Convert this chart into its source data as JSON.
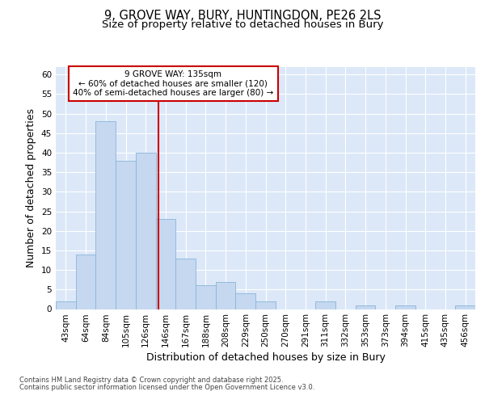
{
  "title1": "9, GROVE WAY, BURY, HUNTINGDON, PE26 2LS",
  "title2": "Size of property relative to detached houses in Bury",
  "xlabel": "Distribution of detached houses by size in Bury",
  "ylabel": "Number of detached properties",
  "categories": [
    "43sqm",
    "64sqm",
    "84sqm",
    "105sqm",
    "126sqm",
    "146sqm",
    "167sqm",
    "188sqm",
    "208sqm",
    "229sqm",
    "250sqm",
    "270sqm",
    "291sqm",
    "311sqm",
    "332sqm",
    "353sqm",
    "373sqm",
    "394sqm",
    "415sqm",
    "435sqm",
    "456sqm"
  ],
  "values": [
    2,
    14,
    48,
    38,
    40,
    23,
    13,
    6,
    7,
    4,
    2,
    0,
    0,
    2,
    0,
    1,
    0,
    1,
    0,
    0,
    1
  ],
  "bar_color": "#c5d8f0",
  "bar_edge_color": "#8ab4d8",
  "red_line_x": 4.62,
  "annotation_line1": "9 GROVE WAY: 135sqm",
  "annotation_line2": "← 60% of detached houses are smaller (120)",
  "annotation_line3": "40% of semi-detached houses are larger (80) →",
  "annotation_box_color": "#ffffff",
  "annotation_box_edge": "#cc0000",
  "ylim": [
    0,
    62
  ],
  "yticks": [
    0,
    5,
    10,
    15,
    20,
    25,
    30,
    35,
    40,
    45,
    50,
    55,
    60
  ],
  "footnote1": "Contains HM Land Registry data © Crown copyright and database right 2025.",
  "footnote2": "Contains public sector information licensed under the Open Government Licence v3.0.",
  "fig_bg_color": "#ffffff",
  "plot_bg_color": "#dce8f8",
  "grid_color": "#ffffff",
  "title_fontsize": 10.5,
  "subtitle_fontsize": 9.5,
  "axis_label_fontsize": 9,
  "tick_fontsize": 7.5,
  "annotation_fontsize": 7.5,
  "footnote_fontsize": 6.0
}
